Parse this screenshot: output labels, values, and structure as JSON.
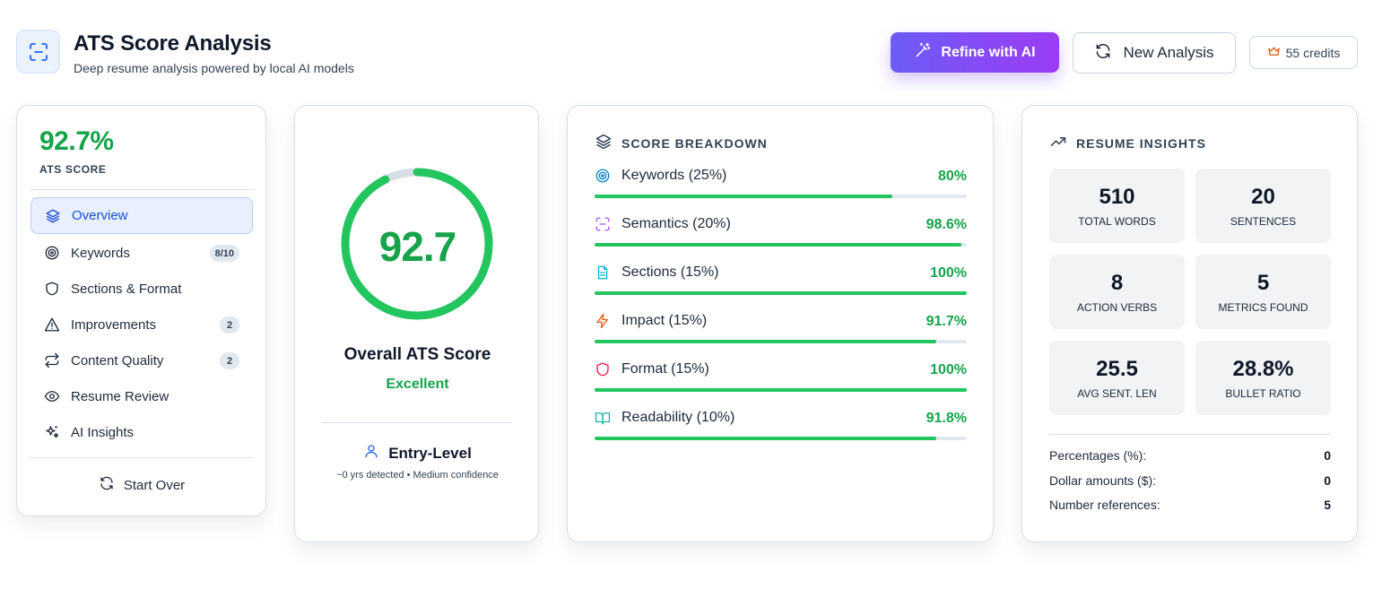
{
  "header": {
    "title": "ATS Score Analysis",
    "subtitle": "Deep resume analysis powered by local AI models",
    "logo_icon": "scan-icon",
    "refine_label": "Refine with AI",
    "new_analysis_label": "New Analysis",
    "credits_label": "55 credits"
  },
  "colors": {
    "accent_green": "#16a34a",
    "bar_green": "#22c55e",
    "primary_blue": "#1d4ed8",
    "refine_gradient_start": "#6d5cf6",
    "refine_gradient_end": "#9b3cf5"
  },
  "sidebar": {
    "score": "92.7%",
    "score_label": "ATS SCORE",
    "items": [
      {
        "label": "Overview",
        "icon": "layers-icon",
        "active": true,
        "badge": ""
      },
      {
        "label": "Keywords",
        "icon": "target-icon",
        "active": false,
        "badge": "8/10"
      },
      {
        "label": "Sections & Format",
        "icon": "shield-icon",
        "active": false,
        "badge": ""
      },
      {
        "label": "Improvements",
        "icon": "warning-icon",
        "active": false,
        "badge": "2"
      },
      {
        "label": "Content Quality",
        "icon": "repeat-icon",
        "active": false,
        "badge": "2"
      },
      {
        "label": "Resume Review",
        "icon": "eye-icon",
        "active": false,
        "badge": ""
      },
      {
        "label": "AI Insights",
        "icon": "sparkles-icon",
        "active": false,
        "badge": ""
      }
    ],
    "start_over_label": "Start Over"
  },
  "score_card": {
    "value": "92.7",
    "percent": 92.7,
    "label": "Overall ATS Score",
    "rating": "Excellent",
    "level": "Entry-Level",
    "meta": "~0 yrs detected • Medium confidence"
  },
  "breakdown": {
    "title": "SCORE BREAKDOWN",
    "rows": [
      {
        "label": "Keywords (25%)",
        "value": "80%",
        "percent": 80,
        "icon": "target-icon",
        "icon_color": "#0284c7"
      },
      {
        "label": "Semantics (20%)",
        "value": "98.6%",
        "percent": 98.6,
        "icon": "scan-icon",
        "icon_color": "#a855f7"
      },
      {
        "label": "Sections (15%)",
        "value": "100%",
        "percent": 100,
        "icon": "document-icon",
        "icon_color": "#06b6d4"
      },
      {
        "label": "Impact (15%)",
        "value": "91.7%",
        "percent": 91.7,
        "icon": "lightning-icon",
        "icon_color": "#ea580c"
      },
      {
        "label": "Format (15%)",
        "value": "100%",
        "percent": 100,
        "icon": "shield-icon",
        "icon_color": "#e11d48"
      },
      {
        "label": "Readability (10%)",
        "value": "91.8%",
        "percent": 91.8,
        "icon": "book-icon",
        "icon_color": "#14b8a6"
      }
    ]
  },
  "insights": {
    "title": "RESUME INSIGHTS",
    "stats": [
      {
        "value": "510",
        "label": "TOTAL WORDS"
      },
      {
        "value": "20",
        "label": "SENTENCES"
      },
      {
        "value": "8",
        "label": "ACTION VERBS"
      },
      {
        "value": "5",
        "label": "METRICS FOUND"
      },
      {
        "value": "25.5",
        "label": "AVG SENT. LEN"
      },
      {
        "value": "28.8%",
        "label": "BULLET RATIO"
      }
    ],
    "references": [
      {
        "label": "Percentages (%):",
        "value": "0"
      },
      {
        "label": "Dollar amounts ($):",
        "value": "0"
      },
      {
        "label": "Number references:",
        "value": "5"
      }
    ]
  }
}
